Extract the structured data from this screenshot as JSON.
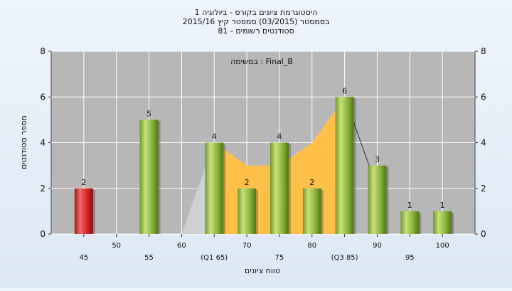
{
  "chart_data": {
    "type": "bar",
    "title_lines": [
      "היסטוגרמת ציונים בקורס - ביולוגיה 1",
      "בסמסטר  (03/2015)  סמסטר קיץ  2015/16",
      "81 - סטודנטים רשומים"
    ],
    "annotation": "במשימה : Final_B",
    "xlabel": "טווח ציונים",
    "ylabel": "מספר סטודנטים",
    "ylim": [
      0,
      8
    ],
    "yticks": [
      0,
      2,
      4,
      6,
      8
    ],
    "grid": true,
    "x_tick_labels": [
      {
        "x": 45,
        "label": "45",
        "row": "lower"
      },
      {
        "x": 50,
        "label": "50",
        "row": "upper"
      },
      {
        "x": 55,
        "label": "55",
        "row": "lower"
      },
      {
        "x": 60,
        "label": "60",
        "row": "upper"
      },
      {
        "x": 65,
        "label": "(Q1 65)",
        "row": "lower"
      },
      {
        "x": 70,
        "label": "70",
        "row": "upper"
      },
      {
        "x": 75,
        "label": "75",
        "row": "lower"
      },
      {
        "x": 80,
        "label": "80",
        "row": "upper"
      },
      {
        "x": 85,
        "label": "(Q3 85)",
        "row": "lower"
      },
      {
        "x": 90,
        "label": "90",
        "row": "upper"
      },
      {
        "x": 95,
        "label": "95",
        "row": "lower"
      },
      {
        "x": 100,
        "label": "100",
        "row": "upper"
      }
    ],
    "bars": [
      {
        "x": 45,
        "value": 2,
        "label": "2",
        "highlight": true
      },
      {
        "x": 55,
        "value": 5,
        "label": "5"
      },
      {
        "x": 65,
        "value": 4,
        "label": "4"
      },
      {
        "x": 70,
        "value": 2,
        "label": "2"
      },
      {
        "x": 75,
        "value": 4,
        "label": "4"
      },
      {
        "x": 80,
        "value": 2,
        "label": "2"
      },
      {
        "x": 85,
        "value": 6,
        "label": "6"
      },
      {
        "x": 90,
        "value": 3,
        "label": "3"
      },
      {
        "x": 95,
        "value": 1,
        "label": "1"
      },
      {
        "x": 100,
        "value": 1,
        "label": "1"
      }
    ],
    "area_light": [
      {
        "x": 60,
        "y": 0
      },
      {
        "x": 65,
        "y": 4
      }
    ],
    "area_iqr": [
      {
        "x": 65,
        "y": 4
      },
      {
        "x": 70,
        "y": 3
      },
      {
        "x": 75,
        "y": 3
      },
      {
        "x": 80,
        "y": 4
      },
      {
        "x": 85,
        "y": 6
      }
    ],
    "tail_line": [
      {
        "x": 85,
        "y": 6
      },
      {
        "x": 90,
        "y": 2
      }
    ],
    "colors": {
      "plot_bg": "#b7b7b7",
      "bar_green": "#8cb83e",
      "bar_red": "#d92a2a",
      "area_iqr": "#ffc04a",
      "area_light": "#d0d0d0"
    }
  }
}
